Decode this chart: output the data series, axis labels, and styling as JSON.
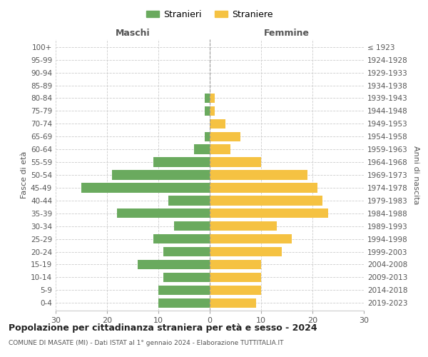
{
  "age_groups": [
    "0-4",
    "5-9",
    "10-14",
    "15-19",
    "20-24",
    "25-29",
    "30-34",
    "35-39",
    "40-44",
    "45-49",
    "50-54",
    "55-59",
    "60-64",
    "65-69",
    "70-74",
    "75-79",
    "80-84",
    "85-89",
    "90-94",
    "95-99",
    "100+"
  ],
  "birth_years": [
    "2019-2023",
    "2014-2018",
    "2009-2013",
    "2004-2008",
    "1999-2003",
    "1994-1998",
    "1989-1993",
    "1984-1988",
    "1979-1983",
    "1974-1978",
    "1969-1973",
    "1964-1968",
    "1959-1963",
    "1954-1958",
    "1949-1953",
    "1944-1948",
    "1939-1943",
    "1934-1938",
    "1929-1933",
    "1924-1928",
    "≤ 1923"
  ],
  "males": [
    10,
    10,
    9,
    14,
    9,
    11,
    7,
    18,
    8,
    25,
    19,
    11,
    3,
    1,
    0,
    1,
    1,
    0,
    0,
    0,
    0
  ],
  "females": [
    9,
    10,
    10,
    10,
    14,
    16,
    13,
    23,
    22,
    21,
    19,
    10,
    4,
    6,
    3,
    1,
    1,
    0,
    0,
    0,
    0
  ],
  "male_color": "#6aaa5e",
  "female_color": "#f5c242",
  "title": "Popolazione per cittadinanza straniera per età e sesso - 2024",
  "subtitle": "COMUNE DI MASATE (MI) - Dati ISTAT al 1° gennaio 2024 - Elaborazione TUTTITALIA.IT",
  "legend_male": "Stranieri",
  "legend_female": "Straniere",
  "xlabel_left": "Maschi",
  "xlabel_right": "Femmine",
  "ylabel_left": "Fasce di età",
  "ylabel_right": "Anni di nascita",
  "xlim": 30,
  "background_color": "#ffffff",
  "grid_color": "#cccccc",
  "bar_height": 0.75
}
